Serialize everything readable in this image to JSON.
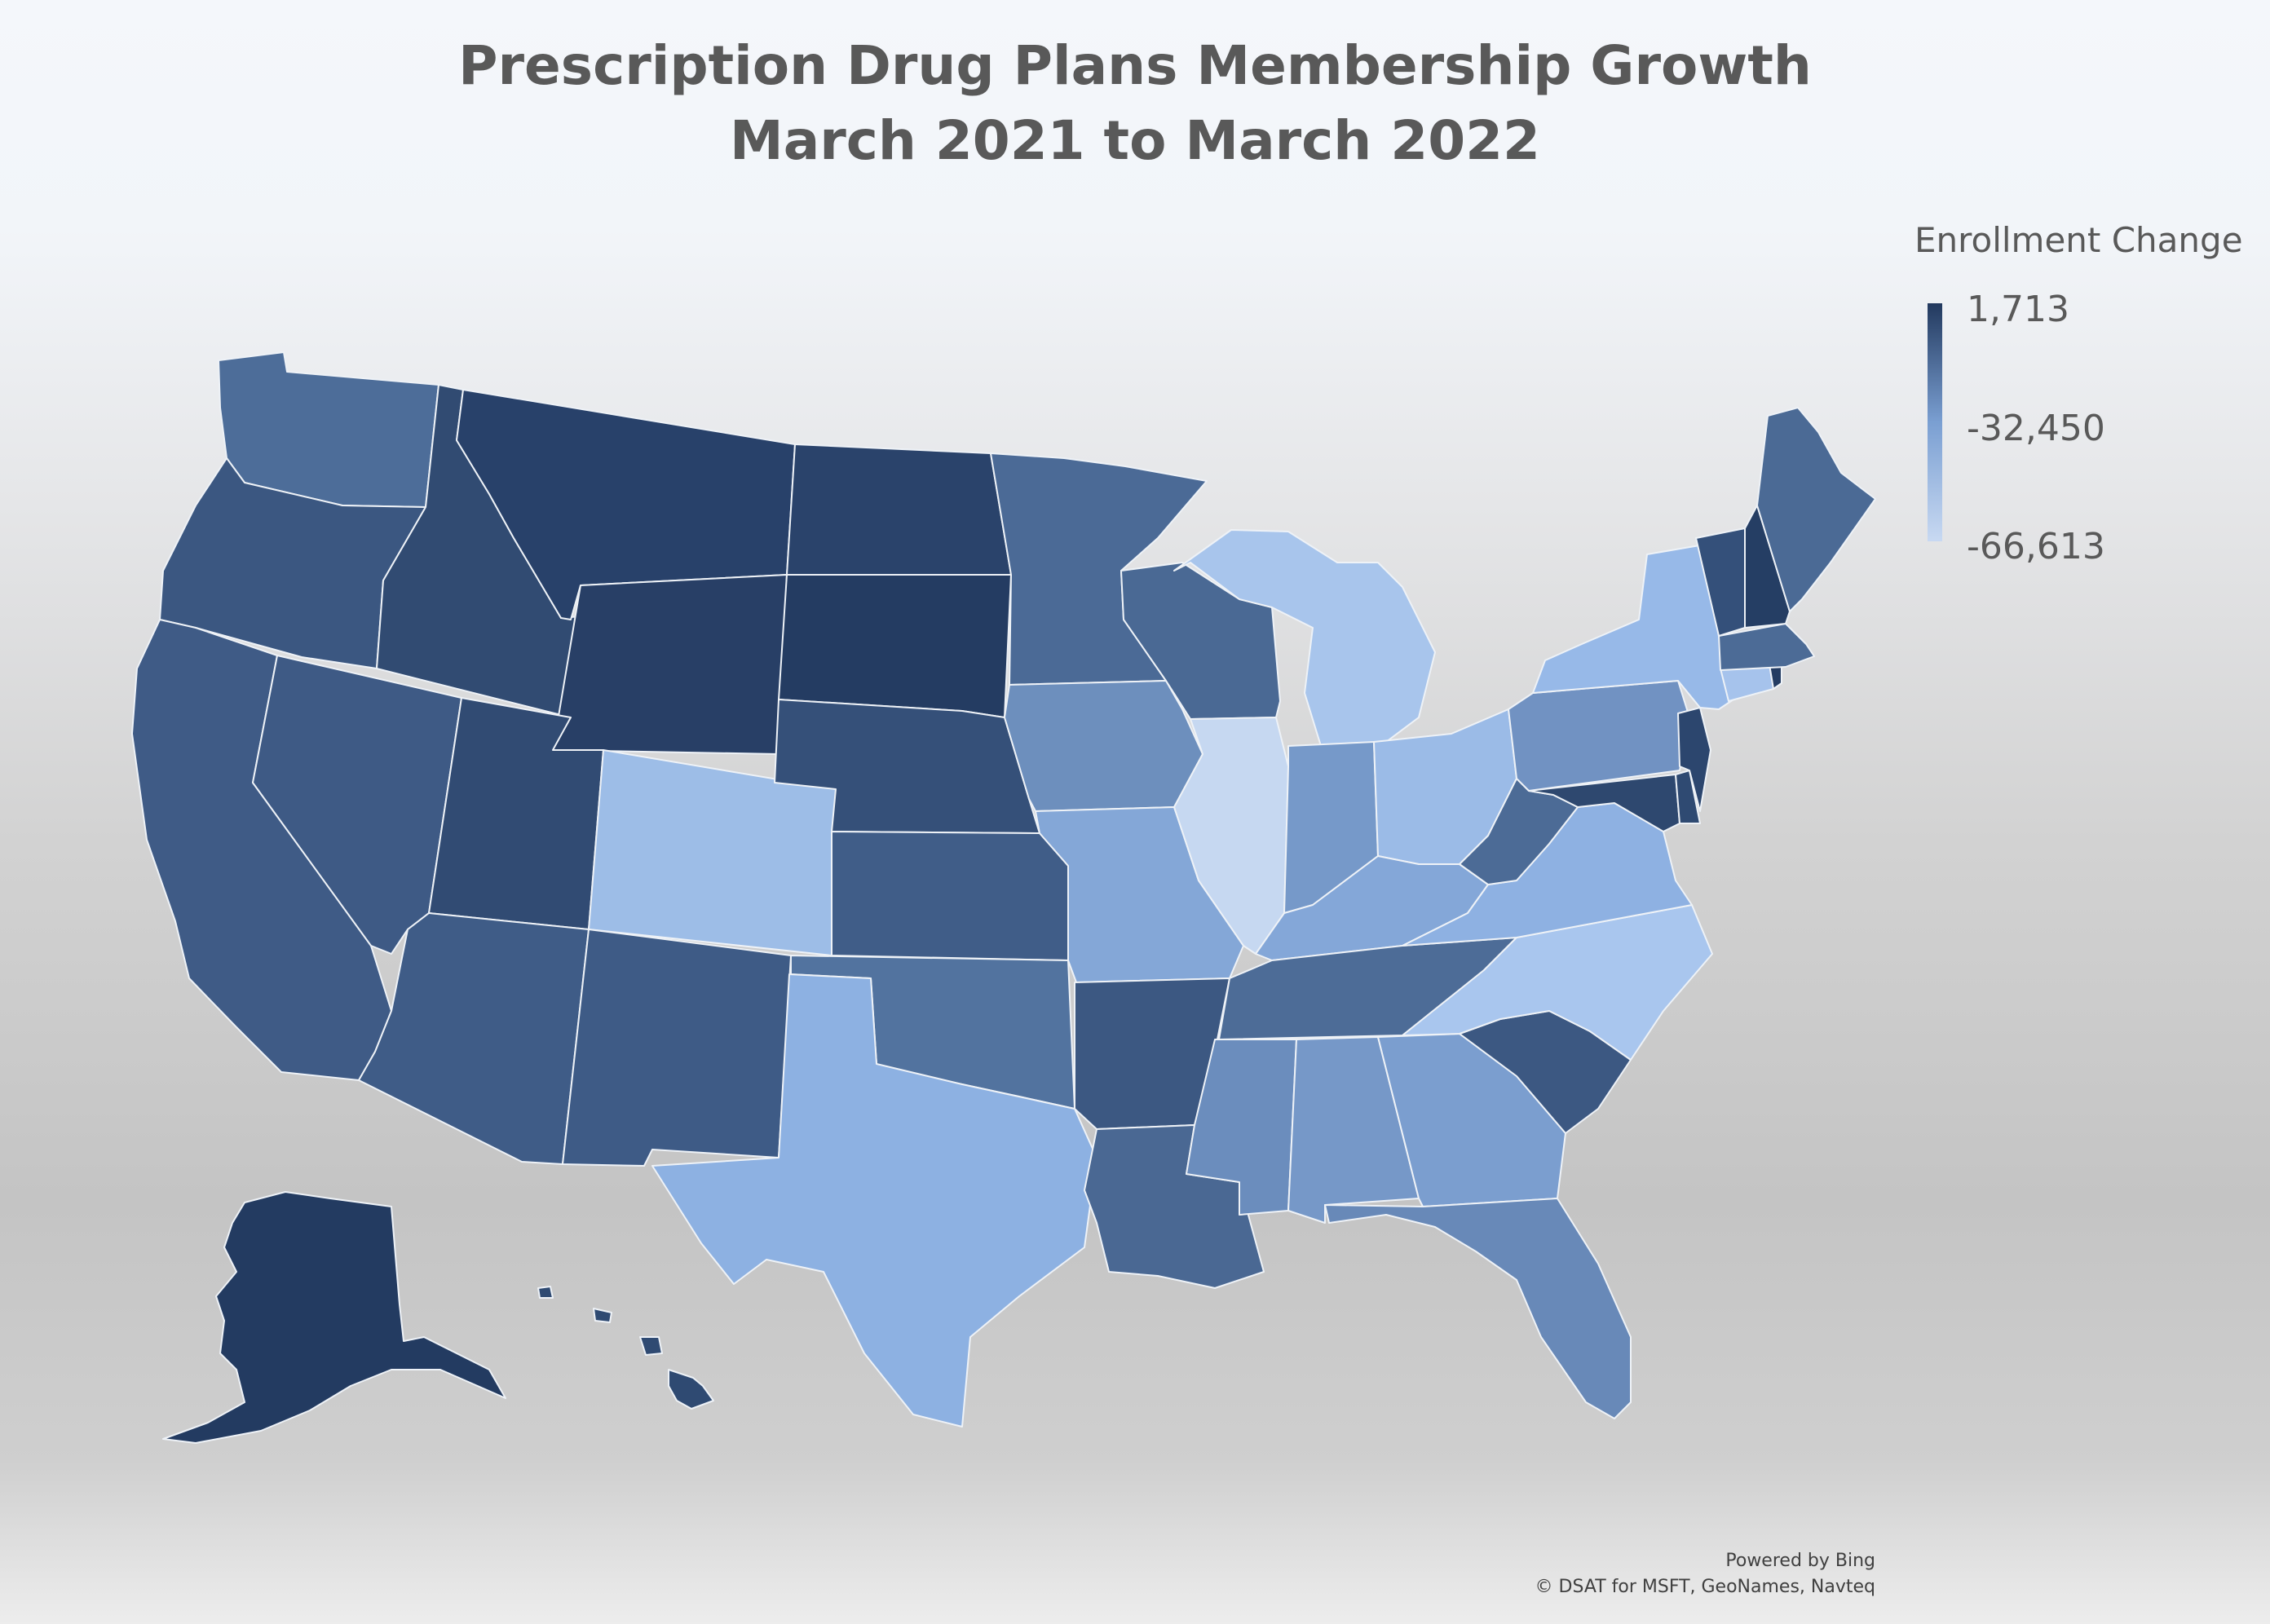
{
  "title_line1": "Prescription Drug Plans Membership Growth",
  "title_line2": "March 2021 to March 2022",
  "legend": {
    "title": "Enrollment Change",
    "max_label": "1,713",
    "mid_label": "-32,450",
    "min_label": "-66,613",
    "color_max": "#22395e",
    "color_mid": "#7a9fd2",
    "color_min": "#c8d9f2"
  },
  "credits": {
    "line1": "Powered by Bing",
    "line2": "© DSAT for MSFT, GeoNames, Navteq"
  },
  "states": [
    {
      "id": "WA",
      "fill": "#4d6d99"
    },
    {
      "id": "OR",
      "fill": "#3b5781"
    },
    {
      "id": "CA",
      "fill": "#3f5b86"
    },
    {
      "id": "ID",
      "fill": "#314b72"
    },
    {
      "id": "NV",
      "fill": "#3e5a85"
    },
    {
      "id": "MT",
      "fill": "#28416a"
    },
    {
      "id": "WY",
      "fill": "#283f66"
    },
    {
      "id": "UT",
      "fill": "#314b73"
    },
    {
      "id": "AZ",
      "fill": "#3f5c87"
    },
    {
      "id": "CO",
      "fill": "#9dbde7"
    },
    {
      "id": "NM",
      "fill": "#3e5b86"
    },
    {
      "id": "ND",
      "fill": "#2a436b"
    },
    {
      "id": "SD",
      "fill": "#243c62"
    },
    {
      "id": "NE",
      "fill": "#355079"
    },
    {
      "id": "KS",
      "fill": "#405d88"
    },
    {
      "id": "OK",
      "fill": "#52739f"
    },
    {
      "id": "TX",
      "fill": "#8db1e2"
    },
    {
      "id": "MN",
      "fill": "#4b6a96"
    },
    {
      "id": "IA",
      "fill": "#6d8fbd"
    },
    {
      "id": "MO",
      "fill": "#84a7d7"
    },
    {
      "id": "AR",
      "fill": "#3c5882"
    },
    {
      "id": "LA",
      "fill": "#4a6893"
    },
    {
      "id": "WI",
      "fill": "#4a6994"
    },
    {
      "id": "IL",
      "fill": "#c6d8f1"
    },
    {
      "id": "MI",
      "fill": "#a8c5ec"
    },
    {
      "id": "IN",
      "fill": "#7699c9"
    },
    {
      "id": "OH",
      "fill": "#9bbbe7"
    },
    {
      "id": "KY",
      "fill": "#84a7d8"
    },
    {
      "id": "TN",
      "fill": "#4d6c97"
    },
    {
      "id": "MS",
      "fill": "#6b8dbd"
    },
    {
      "id": "AL",
      "fill": "#7698c8"
    },
    {
      "id": "GA",
      "fill": "#7b9ecf"
    },
    {
      "id": "FL",
      "fill": "#6889b8"
    },
    {
      "id": "SC",
      "fill": "#3c5882"
    },
    {
      "id": "NC",
      "fill": "#a9c6ee"
    },
    {
      "id": "VA",
      "fill": "#8eb1e2"
    },
    {
      "id": "WV",
      "fill": "#4c6b96"
    },
    {
      "id": "PA",
      "fill": "#7192c2"
    },
    {
      "id": "NY",
      "fill": "#97b9e8"
    },
    {
      "id": "NJ",
      "fill": "#2c466e"
    },
    {
      "id": "DE",
      "fill": "#2f4a72"
    },
    {
      "id": "MD",
      "fill": "#2e486f"
    },
    {
      "id": "CT",
      "fill": "#a6c3ec"
    },
    {
      "id": "RI",
      "fill": "#243c62"
    },
    {
      "id": "MA",
      "fill": "#4c6b96"
    },
    {
      "id": "VT",
      "fill": "#34507a"
    },
    {
      "id": "NH",
      "fill": "#253e64"
    },
    {
      "id": "ME",
      "fill": "#4b6a95"
    },
    {
      "id": "AK",
      "fill": "#233b61"
    },
    {
      "id": "HI",
      "fill": "#2f4a72"
    }
  ]
}
